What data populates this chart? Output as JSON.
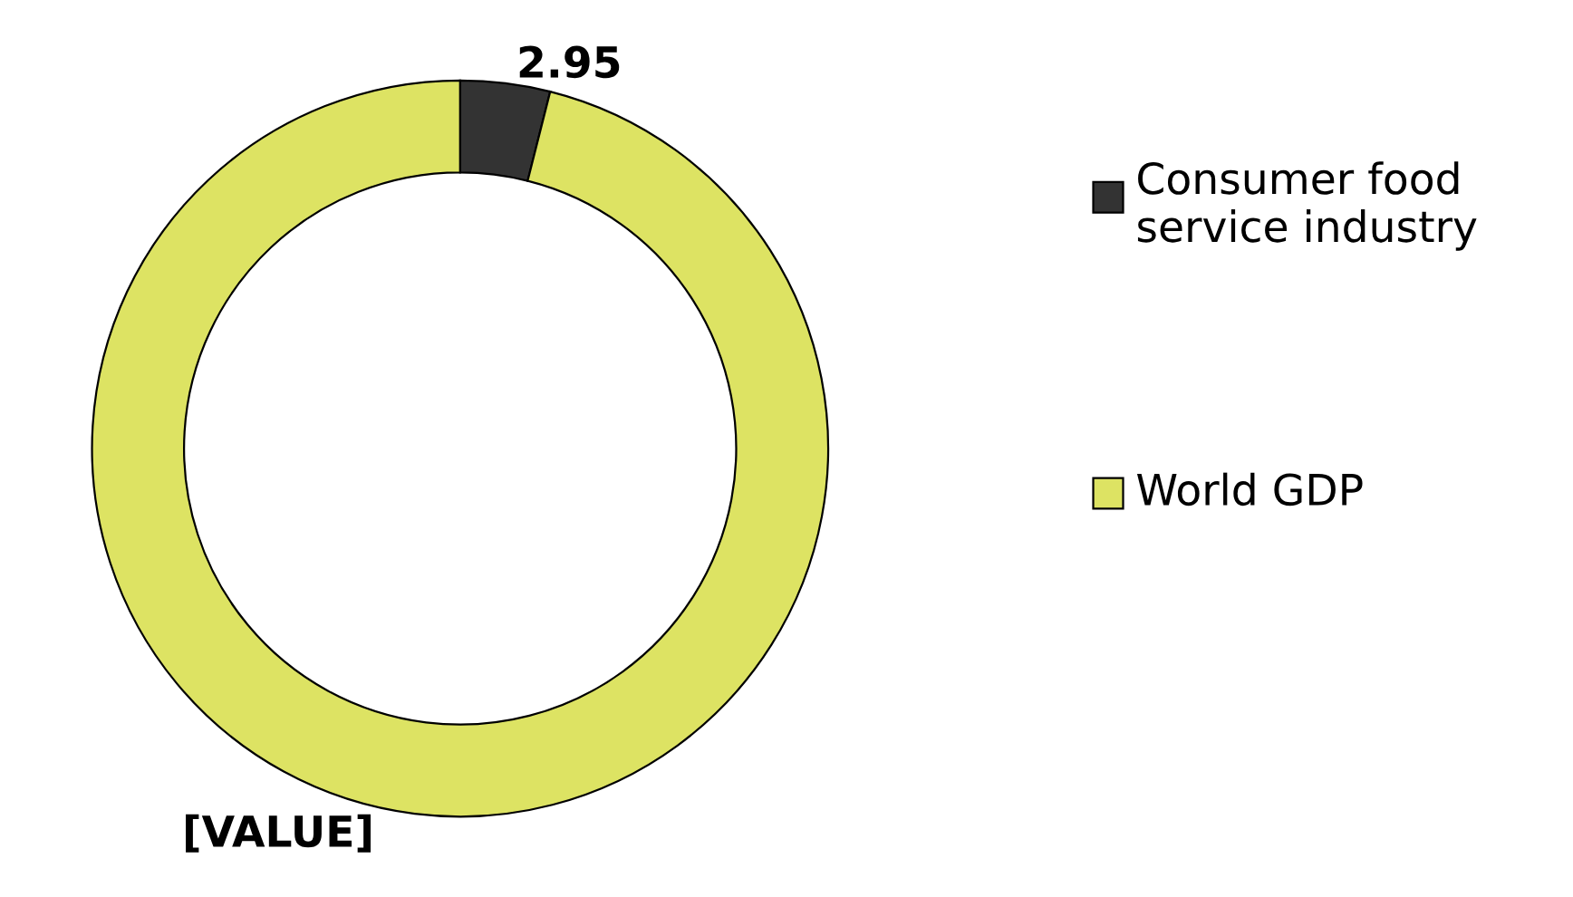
{
  "chart_data": {
    "type": "donut",
    "categories": [
      "Consumer food service industry",
      "World GDP"
    ],
    "values": [
      2.95,
      72
    ],
    "colors": [
      "#333333",
      "#dde363"
    ],
    "value_labels": [
      "2.95",
      "[VALUE]"
    ],
    "legend": "right"
  }
}
